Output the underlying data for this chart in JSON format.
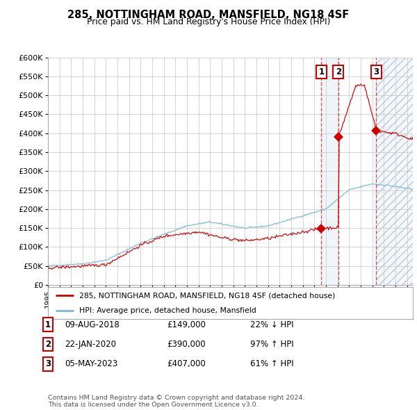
{
  "title": "285, NOTTINGHAM ROAD, MANSFIELD, NG18 4SF",
  "subtitle": "Price paid vs. HM Land Registry's House Price Index (HPI)",
  "ylim": [
    0,
    600000
  ],
  "yticks": [
    0,
    50000,
    100000,
    150000,
    200000,
    250000,
    300000,
    350000,
    400000,
    450000,
    500000,
    550000,
    600000
  ],
  "xlim_start": 1995.0,
  "xlim_end": 2026.5,
  "sale_dates": [
    2018.6,
    2020.07,
    2023.35
  ],
  "sale_prices": [
    149000,
    390000,
    407000
  ],
  "sale_labels": [
    "1",
    "2",
    "3"
  ],
  "sale_date_strs": [
    "09-AUG-2018",
    "22-JAN-2020",
    "05-MAY-2023"
  ],
  "sale_price_strs": [
    "£149,000",
    "£390,000",
    "£407,000"
  ],
  "sale_pct_strs": [
    "22% ↓ HPI",
    "97% ↑ HPI",
    "61% ↑ HPI"
  ],
  "hpi_color": "#7ab8d9",
  "price_color": "#cc0000",
  "label_box_color": "#cc0000",
  "background_color": "#ffffff",
  "grid_color": "#cccccc",
  "legend_label_price": "285, NOTTINGHAM ROAD, MANSFIELD, NG18 4SF (detached house)",
  "legend_label_hpi": "HPI: Average price, detached house, Mansfield",
  "footer": "Contains HM Land Registry data © Crown copyright and database right 2024.\nThis data is licensed under the Open Government Licence v3.0.",
  "shaded_region": [
    2018.6,
    2020.07
  ],
  "hatch_region": [
    2023.35,
    2026.5
  ]
}
